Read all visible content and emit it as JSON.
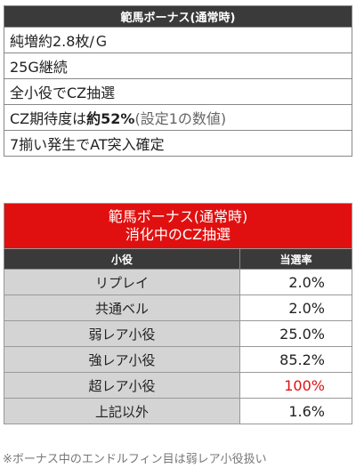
{
  "basic": {
    "title": "範馬ボーナス(通常時)",
    "rows": [
      {
        "text": "純増約2.8枚/Ｇ"
      },
      {
        "text": "25G継続"
      },
      {
        "text": "全小役でCZ抽選"
      },
      {
        "pre": "CZ期待度は",
        "bold": "約52%",
        "note": "(設定1の数値)"
      },
      {
        "text": "7揃い発生でAT突入確定"
      }
    ]
  },
  "cz": {
    "title_line1": "範馬ボーナス(通常時)",
    "title_line2": "消化中のCZ抽選",
    "col_role": "小役",
    "col_rate": "当選率",
    "rows": [
      {
        "role": "リプレイ",
        "rate": "2.0%"
      },
      {
        "role": "共通ベル",
        "rate": "2.0%"
      },
      {
        "role": "弱レア小役",
        "rate": "25.0%"
      },
      {
        "role": "強レア小役",
        "rate": "85.2%"
      },
      {
        "role": "超レア小役",
        "rate": "100%"
      },
      {
        "role": "上記以外",
        "rate": "1.6%"
      }
    ]
  },
  "footnote": "※ボーナス中のエンドルフィン目は弱レア小役扱い",
  "colors": {
    "header_dark": "#3a3a3a",
    "accent_red": "#e01010",
    "row_gray": "#d4d4d4"
  }
}
